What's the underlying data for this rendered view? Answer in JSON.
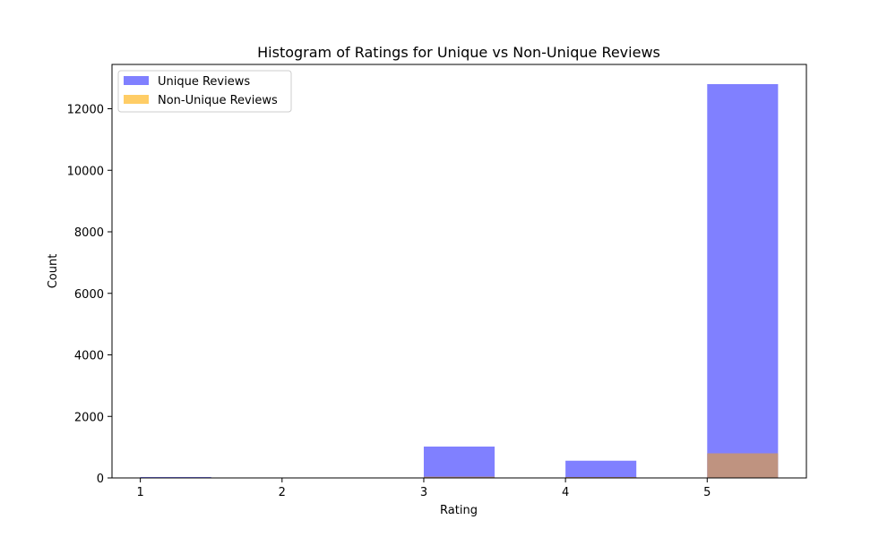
{
  "chart_data": {
    "type": "bar",
    "title": "Histogram of Ratings for Unique vs Non-Unique Reviews",
    "xlabel": "Rating",
    "ylabel": "Count",
    "xlim": [
      0.8,
      5.7
    ],
    "ylim": [
      0,
      13440
    ],
    "x_ticks": [
      1,
      2,
      3,
      4,
      5
    ],
    "y_ticks": [
      0,
      2000,
      4000,
      6000,
      8000,
      10000,
      12000
    ],
    "grid": false,
    "legend_position": "top-left",
    "bin_width": 0.5,
    "series": [
      {
        "name": "Unique Reviews",
        "color": "#8080ff",
        "bins": [
          {
            "x0": 1.0,
            "x1": 1.5,
            "value": 30
          },
          {
            "x0": 3.0,
            "x1": 3.5,
            "value": 1020
          },
          {
            "x0": 4.0,
            "x1": 4.5,
            "value": 560
          },
          {
            "x0": 5.0,
            "x1": 5.5,
            "value": 12800
          }
        ]
      },
      {
        "name": "Non-Unique Reviews",
        "color": "#ffcd66",
        "overlap_color": "#bf9380",
        "bins": [
          {
            "x0": 1.0,
            "x1": 1.5,
            "value": 5
          },
          {
            "x0": 3.0,
            "x1": 3.5,
            "value": 40
          },
          {
            "x0": 4.0,
            "x1": 4.5,
            "value": 30
          },
          {
            "x0": 5.0,
            "x1": 5.5,
            "value": 800
          }
        ]
      }
    ]
  }
}
